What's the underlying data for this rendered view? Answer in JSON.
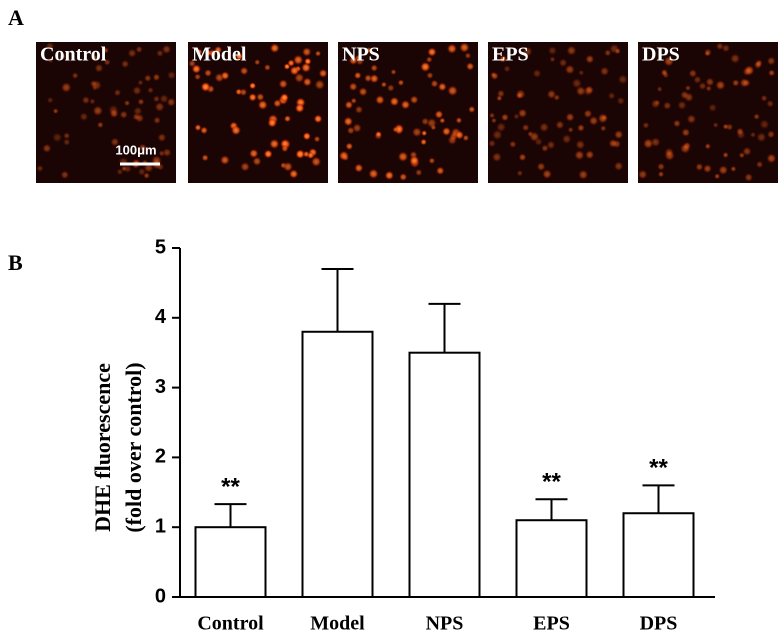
{
  "panel_a": {
    "label": "A",
    "images": [
      "Control",
      "Model",
      "NPS",
      "EPS",
      "DPS"
    ],
    "scale_bar": "100μm"
  },
  "panel_b": {
    "label": "B"
  },
  "chart_data": {
    "type": "bar",
    "ylabel": [
      "DHE fluorescence",
      "(fold over control)"
    ],
    "categories": [
      "Control",
      "Model",
      "NPS",
      "EPS",
      "DPS"
    ],
    "series": [
      {
        "name": "DHE fluorescence",
        "color": "#ffffff",
        "values": [
          1.0,
          3.8,
          3.5,
          1.1,
          1.2
        ],
        "errors": [
          0.33,
          0.9,
          0.7,
          0.3,
          0.4
        ]
      }
    ],
    "annotations": [
      {
        "text": "**",
        "category": "Control"
      },
      {
        "text": "**",
        "category": "EPS"
      },
      {
        "text": "**",
        "category": "DPS"
      }
    ],
    "ylim": [
      0,
      5
    ],
    "yticks": [
      0,
      1,
      2,
      3,
      4,
      5
    ],
    "grid": false
  }
}
